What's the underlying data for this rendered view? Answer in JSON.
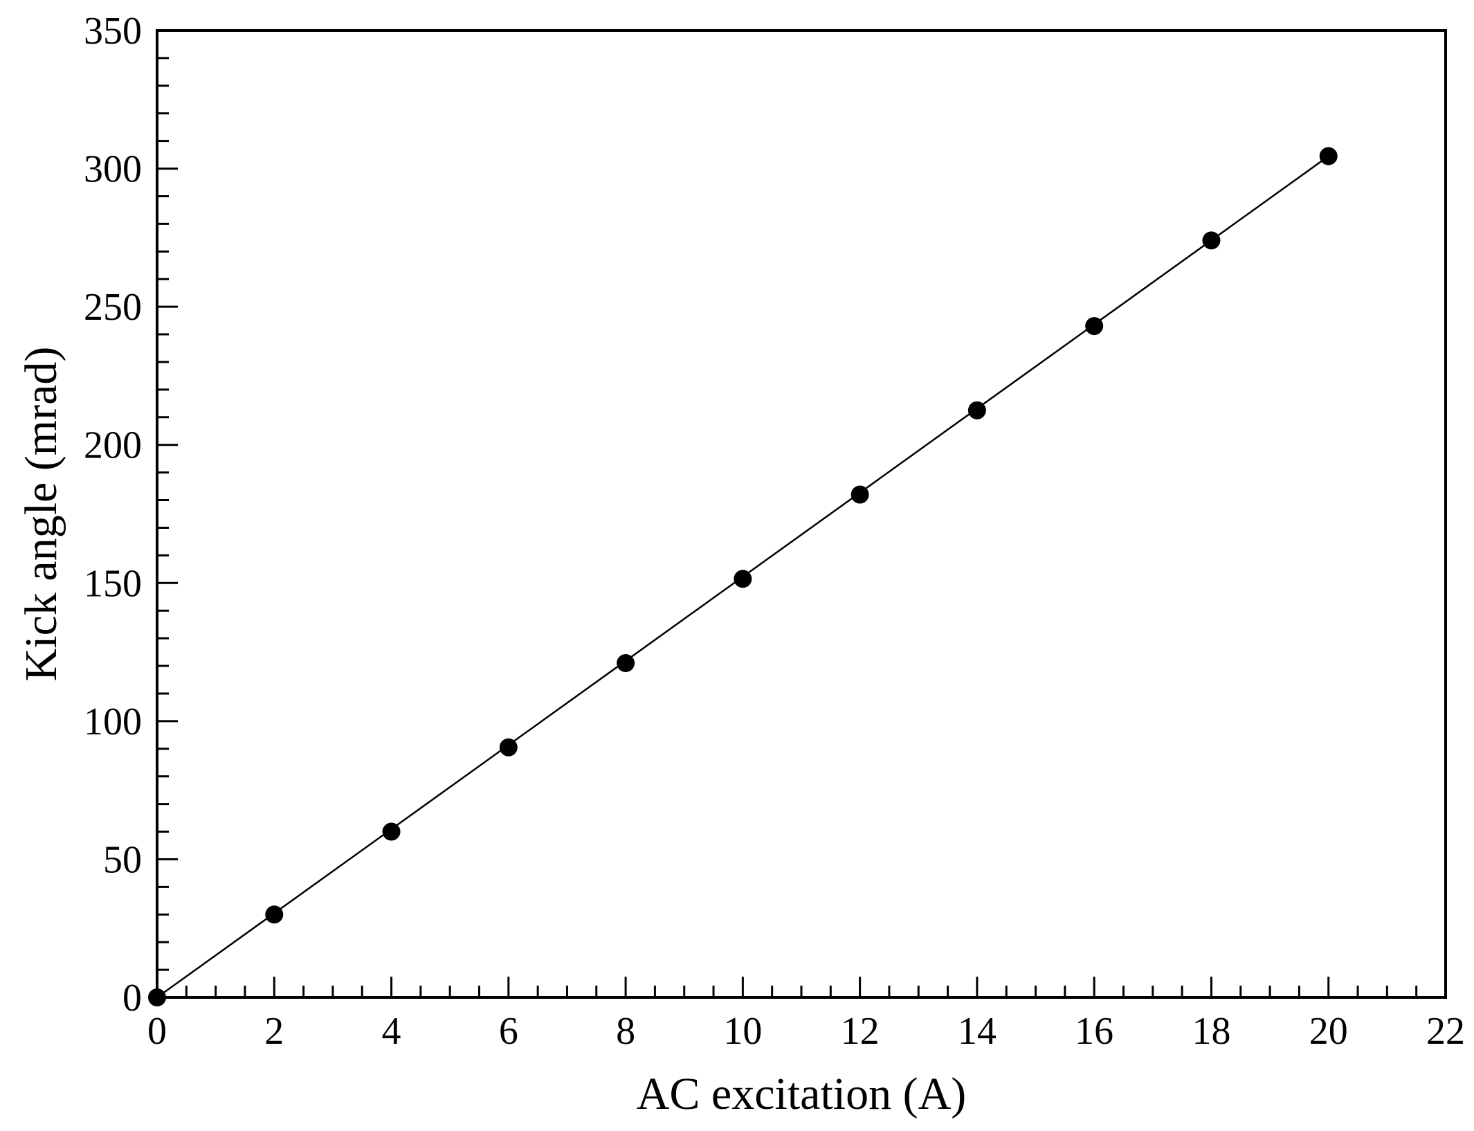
{
  "chart_data": {
    "type": "scatter",
    "title": "",
    "xlabel": "AC excitation (A)",
    "ylabel": "Kick angle (mrad)",
    "xlim": [
      0,
      22
    ],
    "ylim": [
      0,
      350
    ],
    "x_ticks": [
      "0",
      "2",
      "4",
      "6",
      "8",
      "10",
      "12",
      "14",
      "16",
      "18",
      "20",
      "22"
    ],
    "y_ticks": [
      "0",
      "50",
      "100",
      "150",
      "200",
      "250",
      "300",
      "350"
    ],
    "grid": false,
    "legend": "none",
    "series": [
      {
        "x": [
          0,
          2,
          4,
          6,
          8,
          10,
          12,
          14,
          16,
          18,
          20
        ],
        "y": [
          0,
          30,
          60,
          90.5,
          121,
          151.5,
          182,
          212.5,
          243,
          274,
          304.5
        ],
        "marker": "filled-circle",
        "color": "#000000"
      }
    ],
    "fit_line": {
      "x": [
        0,
        20
      ],
      "y": [
        0,
        304.5
      ],
      "color": "#000000"
    }
  }
}
